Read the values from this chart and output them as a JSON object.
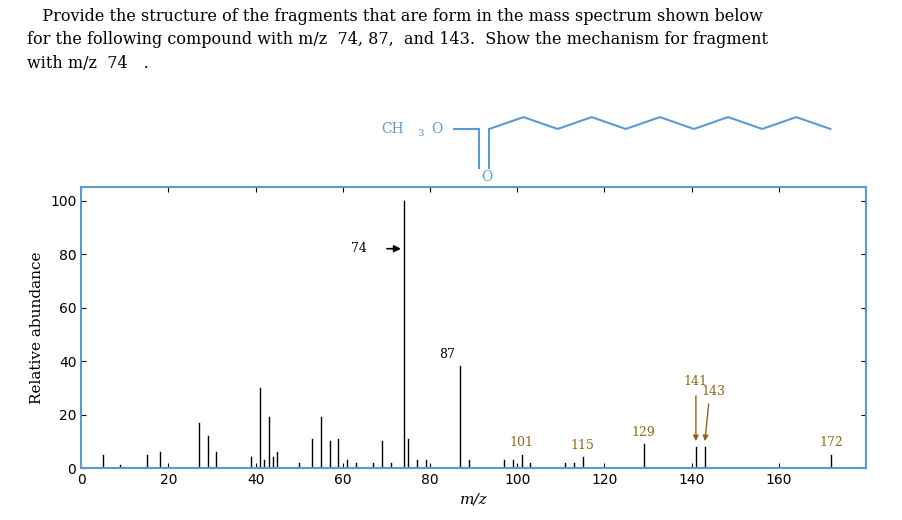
{
  "title_text_line1": "   Provide the structure of the fragments that are form in the mass spectrum shown below",
  "title_text_line2": "for the following compound with m/z  74, 87,  and 143.  Show the mechanism for fragment",
  "title_text_line3": "with m/z  74 .",
  "xlabel": "m/z",
  "ylabel": "Relative abundance",
  "xlim": [
    0,
    180
  ],
  "ylim": [
    0,
    105
  ],
  "yticks": [
    0,
    20,
    40,
    60,
    80,
    100
  ],
  "xticks": [
    0,
    20,
    40,
    60,
    80,
    100,
    120,
    140,
    160
  ],
  "spine_color": "#5b9bd5",
  "bar_color": "#000000",
  "label_color": "#8B6914",
  "peaks": [
    [
      5,
      5
    ],
    [
      9,
      1
    ],
    [
      15,
      5
    ],
    [
      18,
      6
    ],
    [
      27,
      17
    ],
    [
      29,
      12
    ],
    [
      31,
      6
    ],
    [
      39,
      4
    ],
    [
      41,
      30
    ],
    [
      42,
      3
    ],
    [
      43,
      19
    ],
    [
      44,
      4
    ],
    [
      45,
      6
    ],
    [
      50,
      2
    ],
    [
      53,
      11
    ],
    [
      55,
      19
    ],
    [
      57,
      10
    ],
    [
      59,
      11
    ],
    [
      61,
      3
    ],
    [
      63,
      2
    ],
    [
      67,
      2
    ],
    [
      69,
      10
    ],
    [
      71,
      2
    ],
    [
      74,
      100
    ],
    [
      75,
      11
    ],
    [
      77,
      3
    ],
    [
      79,
      3
    ],
    [
      87,
      38
    ],
    [
      89,
      3
    ],
    [
      97,
      3
    ],
    [
      99,
      3
    ],
    [
      101,
      5
    ],
    [
      103,
      2
    ],
    [
      111,
      2
    ],
    [
      113,
      2
    ],
    [
      115,
      4
    ],
    [
      129,
      9
    ],
    [
      141,
      8
    ],
    [
      143,
      8
    ],
    [
      172,
      5
    ]
  ],
  "ch3o_color": "#5b9bd5",
  "figure_bg": "#ffffff",
  "title_fontsize": 11.5,
  "axis_fontsize": 11,
  "label_fontsize": 9
}
